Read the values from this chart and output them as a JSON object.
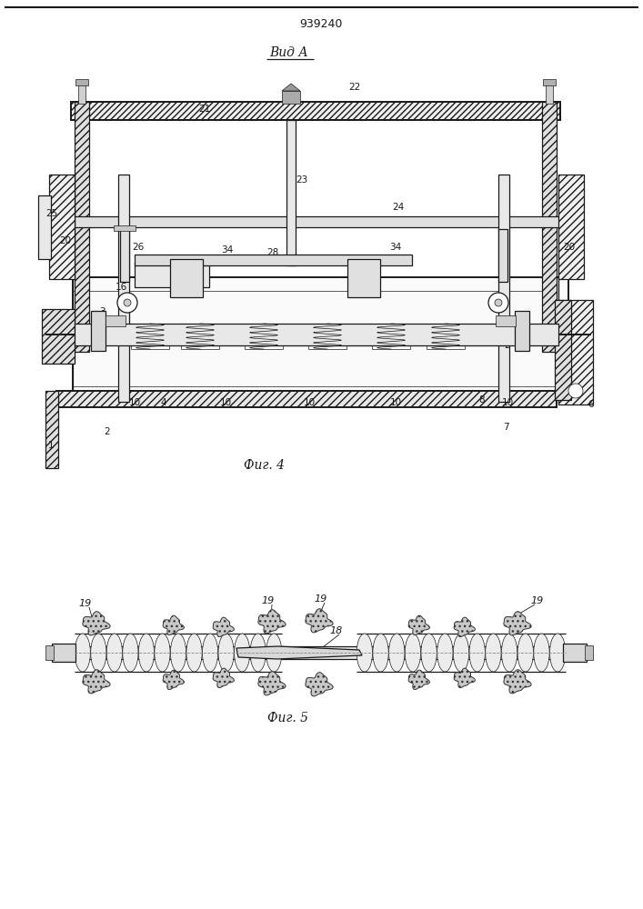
{
  "title": "939240",
  "view_label": "Вид А",
  "fig4_label": "Фиг. 4",
  "fig5_label": "Фиг. 5",
  "bg_color": "#ffffff",
  "line_color": "#1a1a1a",
  "fig_width": 7.07,
  "fig_height": 10.0,
  "dpi": 100
}
